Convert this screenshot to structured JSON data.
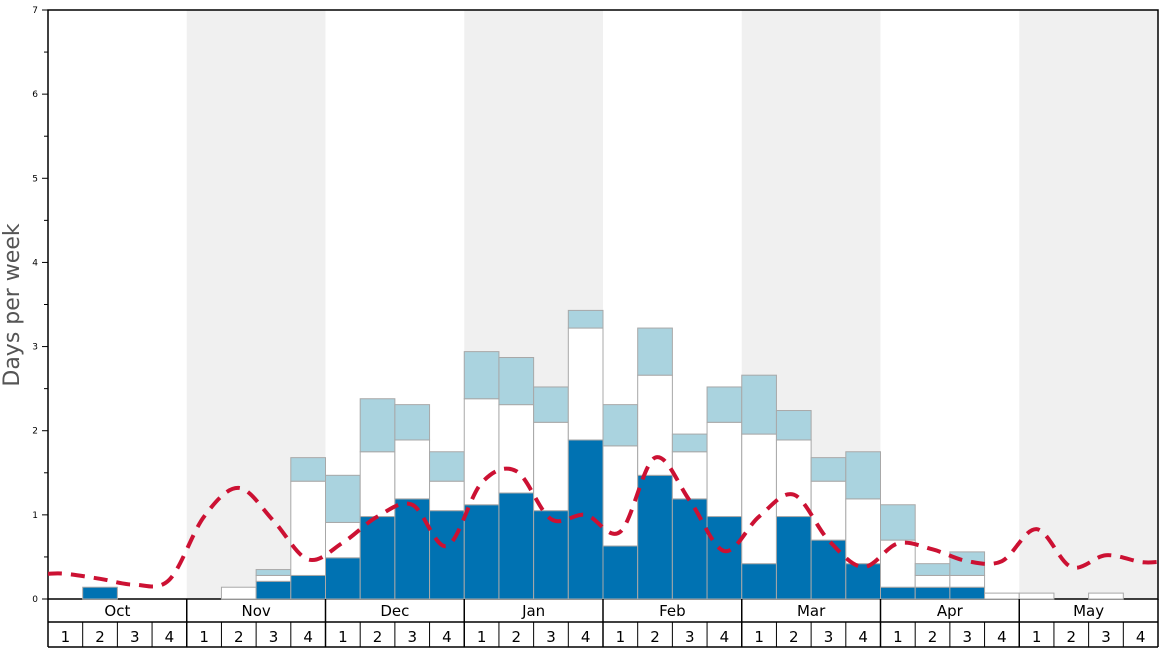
{
  "chart_data": {
    "type": "bar",
    "ylabel": "Days per week",
    "ylim": [
      0,
      7
    ],
    "y_ticks": [
      "0",
      "1",
      "2",
      "3",
      "4",
      "5",
      "6",
      "7"
    ],
    "months": [
      "Oct",
      "Nov",
      "Dec",
      "Jan",
      "Feb",
      "Mar",
      "Apr",
      "May"
    ],
    "weeks": [
      "1",
      "2",
      "3",
      "4"
    ],
    "shaded_months": [
      "Nov",
      "Jan",
      "Mar",
      "May"
    ],
    "series": [
      {
        "color": "#0072b2",
        "values": [
          0,
          0.14,
          0,
          0,
          0,
          0,
          0.21,
          0.28,
          0.49,
          0.98,
          1.19,
          1.05,
          1.12,
          1.26,
          1.05,
          1.89,
          0.63,
          1.47,
          1.19,
          0.98,
          0.42,
          0.98,
          0.7,
          0.42,
          0.14,
          0.14,
          0.14,
          0,
          0,
          0,
          0,
          0
        ]
      },
      {
        "color": "#ffffff",
        "values": [
          0,
          0,
          0,
          0,
          0,
          0.14,
          0.07,
          1.12,
          0.42,
          0.77,
          0.7,
          0.35,
          1.26,
          1.05,
          1.05,
          1.33,
          1.19,
          1.19,
          0.56,
          1.12,
          1.54,
          0.91,
          0.7,
          0.77,
          0.56,
          0.14,
          0.14,
          0.07,
          0.07,
          0,
          0.07,
          0
        ]
      },
      {
        "color": "#aad3df",
        "values": [
          0,
          0,
          0,
          0,
          0,
          0,
          0.07,
          0.28,
          0.56,
          0.63,
          0.42,
          0.35,
          0.56,
          0.56,
          0.42,
          0.21,
          0.49,
          0.56,
          0.21,
          0.42,
          0.7,
          0.35,
          0.28,
          0.56,
          0.42,
          0.14,
          0.28,
          0,
          0,
          0,
          0,
          0
        ]
      },
      {
        "color": "#cc1133",
        "values": [
          0.3,
          0.24,
          0.17,
          0.23,
          0.98,
          1.32,
          0.93,
          0.47,
          0.67,
          0.98,
          1.12,
          0.63,
          1.38,
          1.52,
          0.95,
          1.0,
          0.8,
          1.68,
          1.17,
          0.57,
          0.98,
          1.24,
          0.7,
          0.38,
          0.66,
          0.59,
          0.45,
          0.45,
          0.83,
          0.38,
          0.52,
          0.44
        ]
      }
    ]
  }
}
